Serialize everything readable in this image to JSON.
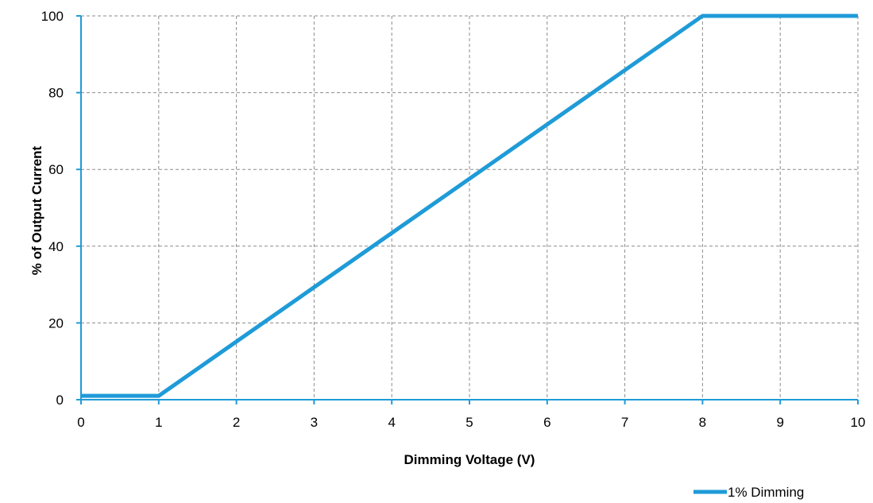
{
  "colors": {
    "series": "#1f9bd7",
    "grid": "#8c8c8c",
    "axis": "#1f9bd7",
    "background": "#ffffff"
  },
  "chart_data": {
    "type": "line",
    "title": "",
    "xlabel": "Dimming Voltage (V)",
    "ylabel": "% of Output Current",
    "xlim": [
      0,
      10
    ],
    "ylim": [
      0,
      100
    ],
    "x_ticks": [
      0,
      1,
      2,
      3,
      4,
      5,
      6,
      7,
      8,
      9,
      10
    ],
    "y_ticks": [
      0,
      20,
      40,
      60,
      80,
      100
    ],
    "grid": "on (dashed)",
    "legend_position": "bottom-right",
    "series": [
      {
        "name": "1% Dimming",
        "x": [
          0,
          1,
          8,
          10
        ],
        "y": [
          1,
          1,
          100,
          100
        ]
      }
    ]
  }
}
